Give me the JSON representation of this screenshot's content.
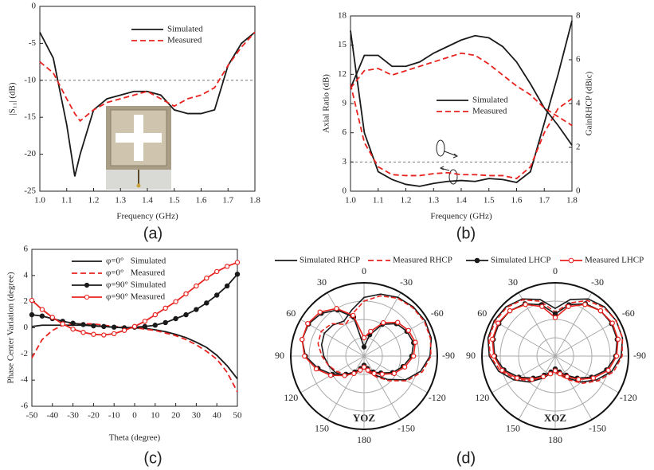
{
  "chart_data": [
    {
      "type": "line",
      "panel_label": "(a)",
      "xlabel": "Frequency (GHz)",
      "ylabel": "|S₁₁| (dB)",
      "x": [
        1.0,
        1.05,
        1.1,
        1.13,
        1.15,
        1.2,
        1.25,
        1.3,
        1.35,
        1.4,
        1.45,
        1.5,
        1.55,
        1.6,
        1.65,
        1.7,
        1.75,
        1.8
      ],
      "xlim": [
        1.0,
        1.8
      ],
      "xticks": [
        {
          "value": 1.0,
          "label": "1.0"
        },
        1.1,
        1.2,
        1.3,
        1.4,
        1.5,
        1.6,
        1.7,
        1.8
      ],
      "ylim": [
        -25,
        0
      ],
      "yticks": [
        0,
        -5,
        -10,
        -15,
        -20,
        -25
      ],
      "hline": -10,
      "series": [
        {
          "name": "Simulated",
          "color": "#1a1a1a",
          "dash": false,
          "values": [
            -3.5,
            -7,
            -16,
            -23,
            -20,
            -14,
            -12.5,
            -12,
            -11.5,
            -11.5,
            -12,
            -14,
            -14.5,
            -14.5,
            -14,
            -8,
            -5,
            -3.5
          ]
        },
        {
          "name": "Measured",
          "color": "#e8231f",
          "dash": true,
          "values": [
            -7.5,
            -9,
            -12.5,
            -14.5,
            -15.5,
            -14,
            -13,
            -12.5,
            -12,
            -11.5,
            -12.5,
            -13.5,
            -12.5,
            -12,
            -11,
            -8,
            -5.5,
            -3.5
          ]
        }
      ]
    },
    {
      "type": "line",
      "panel_label": "(b)",
      "xlabel": "Frequency (GHz)",
      "ylabel": "Axial Ratio (dB)",
      "y2label": "GainRHCP (dBic)",
      "x": [
        1.0,
        1.05,
        1.1,
        1.15,
        1.2,
        1.25,
        1.3,
        1.35,
        1.4,
        1.45,
        1.5,
        1.55,
        1.6,
        1.65,
        1.7,
        1.75,
        1.8
      ],
      "xlim": [
        1.0,
        1.8
      ],
      "xticks": [
        {
          "value": 1.0,
          "label": "1.0"
        },
        1.1,
        1.2,
        1.3,
        1.4,
        1.5,
        1.6,
        1.7,
        1.8
      ],
      "ylim": [
        0,
        18
      ],
      "yticks": [
        0,
        3,
        6,
        9,
        12,
        15,
        18
      ],
      "y2lim": [
        0,
        8
      ],
      "y2ticks": [
        0,
        2,
        4,
        6,
        8
      ],
      "hline": 3,
      "series": [
        {
          "name": "Simulated",
          "color": "#1a1a1a",
          "dash": false,
          "values": [
            16.5,
            6,
            2,
            1.2,
            0.7,
            0.5,
            0.8,
            1.0,
            1.1,
            1.0,
            1.3,
            1.2,
            0.9,
            2,
            7,
            12,
            17.5
          ]
        },
        {
          "name": "Measured",
          "color": "#e8231f",
          "dash": true,
          "values": [
            11,
            5,
            2.5,
            1.7,
            1.6,
            1.6,
            1.8,
            1.9,
            1.7,
            1.7,
            1.6,
            1.6,
            1.3,
            2.5,
            6,
            8.5,
            9.5
          ]
        },
        {
          "name": "Simulated",
          "color": "#1a1a1a",
          "dash": false,
          "axis": "y2",
          "values": [
            4.7,
            6.2,
            6.2,
            5.7,
            5.7,
            5.9,
            6.3,
            6.6,
            6.9,
            7.1,
            7.0,
            6.6,
            5.9,
            4.9,
            3.8,
            3.0,
            2.1
          ]
        },
        {
          "name": "Measured",
          "color": "#e8231f",
          "dash": true,
          "axis": "y2",
          "values": [
            4.7,
            5.5,
            5.6,
            5.3,
            5.5,
            5.7,
            5.9,
            6.1,
            6.3,
            6.2,
            5.8,
            5.3,
            4.8,
            4.4,
            3.8,
            3.4,
            3.0
          ]
        }
      ]
    },
    {
      "type": "line",
      "panel_label": "(c)",
      "xlabel": "Theta (degree)",
      "ylabel": "Phase Center Variation (degree)",
      "x": [
        -50,
        -45,
        -40,
        -35,
        -30,
        -25,
        -20,
        -15,
        -10,
        -5,
        0,
        5,
        10,
        15,
        20,
        25,
        30,
        35,
        40,
        45,
        50
      ],
      "xlim": [
        -50,
        50
      ],
      "xticks": [
        -50,
        -40,
        -30,
        -20,
        -10,
        0,
        10,
        20,
        30,
        40,
        50
      ],
      "ylim": [
        -6,
        6
      ],
      "yticks": [
        -6,
        -4,
        -2,
        0,
        2,
        4,
        6
      ],
      "series": [
        {
          "name": "φ=0°   Simulated",
          "color": "#1a1a1a",
          "dash": false,
          "values": [
            0.1,
            0.2,
            0.2,
            0.2,
            0.2,
            0.2,
            0.15,
            0.1,
            0.05,
            0,
            0,
            -0.05,
            -0.15,
            -0.3,
            -0.5,
            -0.75,
            -1.1,
            -1.5,
            -2.1,
            -2.9,
            -3.9
          ]
        },
        {
          "name": "φ=0°   Measured",
          "color": "#e8231f",
          "dash": true,
          "values": [
            -2.3,
            -0.9,
            -0.2,
            0.2,
            0.3,
            0.3,
            0.3,
            0.2,
            0.1,
            0.05,
            0,
            -0.1,
            -0.2,
            -0.4,
            -0.6,
            -0.9,
            -1.3,
            -1.8,
            -2.4,
            -3.4,
            -4.9
          ]
        },
        {
          "name": "φ=90° Simulated",
          "color": "#1a1a1a",
          "dash": false,
          "marker": "filled",
          "values": [
            1.0,
            0.9,
            0.7,
            0.5,
            0.35,
            0.25,
            0.15,
            0.1,
            0.05,
            0,
            0.05,
            0.1,
            0.2,
            0.4,
            0.7,
            1.0,
            1.4,
            1.9,
            2.5,
            3.2,
            4.1
          ]
        },
        {
          "name": "φ=90° Measured",
          "color": "#e8231f",
          "dash": false,
          "marker": "open",
          "values": [
            2.1,
            1.4,
            0.8,
            0.3,
            -0.1,
            -0.35,
            -0.5,
            -0.55,
            -0.45,
            -0.2,
            0.1,
            0.5,
            1.0,
            1.5,
            2.0,
            2.6,
            3.2,
            3.8,
            4.3,
            4.7,
            5.0
          ]
        }
      ]
    },
    {
      "type": "polar",
      "panel_label": "(d)",
      "theta": [
        -180,
        -165,
        -150,
        -135,
        -120,
        -105,
        -90,
        -75,
        -60,
        -45,
        -30,
        -15,
        0,
        15,
        30,
        45,
        60,
        75,
        90,
        105,
        120,
        135,
        150,
        165
      ],
      "thetaticks": [
        0,
        -30,
        -60,
        -90,
        -120,
        -150,
        180,
        150,
        120,
        90,
        60,
        30
      ],
      "rlim": [
        -40,
        0
      ],
      "rticks": [
        -30,
        -20,
        -10,
        0
      ],
      "series": [
        {
          "name": "Simulated RHCP",
          "color": "#1a1a1a",
          "dash": false
        },
        {
          "name": "Measured RHCP",
          "color": "#e8231f",
          "dash": true
        },
        {
          "name": "Simulated LHCP",
          "color": "#1a1a1a",
          "dash": false,
          "marker": "filled"
        },
        {
          "name": "Measured LHCP",
          "color": "#e8231f",
          "dash": false,
          "marker": "open"
        }
      ],
      "subplots": [
        {
          "title": "YOZ",
          "values": [
            [
              -35,
              -32,
              -28,
              -22,
              -14,
              -8,
              -4,
              -2,
              -1.5,
              -2,
              -3,
              -5,
              -8,
              -14,
              -18,
              -16,
              -15,
              -16,
              -18,
              -20,
              -22,
              -25,
              -30,
              -33
            ],
            [
              -35,
              -31,
              -27,
              -21,
              -13,
              -7,
              -3.5,
              -2.5,
              -2,
              -2.5,
              -3.5,
              -6,
              -10,
              -16,
              -20,
              -15,
              -13,
              -14,
              -17,
              -20,
              -23,
              -26,
              -30,
              -33
            ],
            [
              -35,
              -33,
              -30,
              -27,
              -22,
              -18,
              -14,
              -12,
              -13,
              -15,
              -20,
              -28,
              -35,
              -18,
              -11,
              -7,
              -5,
              -5,
              -8,
              -14,
              -20,
              -26,
              -30,
              -33
            ],
            [
              -34,
              -32,
              -29,
              -26,
              -21,
              -17,
              -13,
              -11,
              -12,
              -14,
              -19,
              -26,
              -30,
              -17,
              -10,
              -6,
              -4.5,
              -5,
              -7.5,
              -13,
              -19,
              -25,
              -29,
              -32
            ]
          ]
        },
        {
          "title": "XOZ",
          "values": [
            [
              -32,
              -30,
              -26,
              -20,
              -14,
              -8,
              -4,
              -2,
              -1.5,
              -2,
              -4,
              -8,
              -14,
              -8,
              -4,
              -2,
              -1.5,
              -2,
              -4,
              -8,
              -14,
              -20,
              -26,
              -30
            ],
            [
              -31,
              -29,
              -25,
              -19,
              -13,
              -7,
              -3.5,
              -2,
              -1.5,
              -2.5,
              -5,
              -10,
              -16,
              -9,
              -4.5,
              -2.5,
              -2,
              -2.5,
              -4.5,
              -9,
              -15,
              -21,
              -27,
              -30
            ],
            [
              -33,
              -31,
              -28,
              -23,
              -17,
              -11,
              -7,
              -5,
              -4.5,
              -5,
              -7,
              -11,
              -17,
              -11,
              -7,
              -5,
              -4.5,
              -5,
              -7,
              -11,
              -17,
              -23,
              -28,
              -31
            ],
            [
              -32,
              -30,
              -27,
              -22,
              -16,
              -10,
              -6.5,
              -4.5,
              -4,
              -5,
              -7.5,
              -12,
              -19,
              -12,
              -7.5,
              -5,
              -4,
              -4.5,
              -6.5,
              -10,
              -16,
              -22,
              -27,
              -30
            ]
          ]
        }
      ]
    }
  ]
}
